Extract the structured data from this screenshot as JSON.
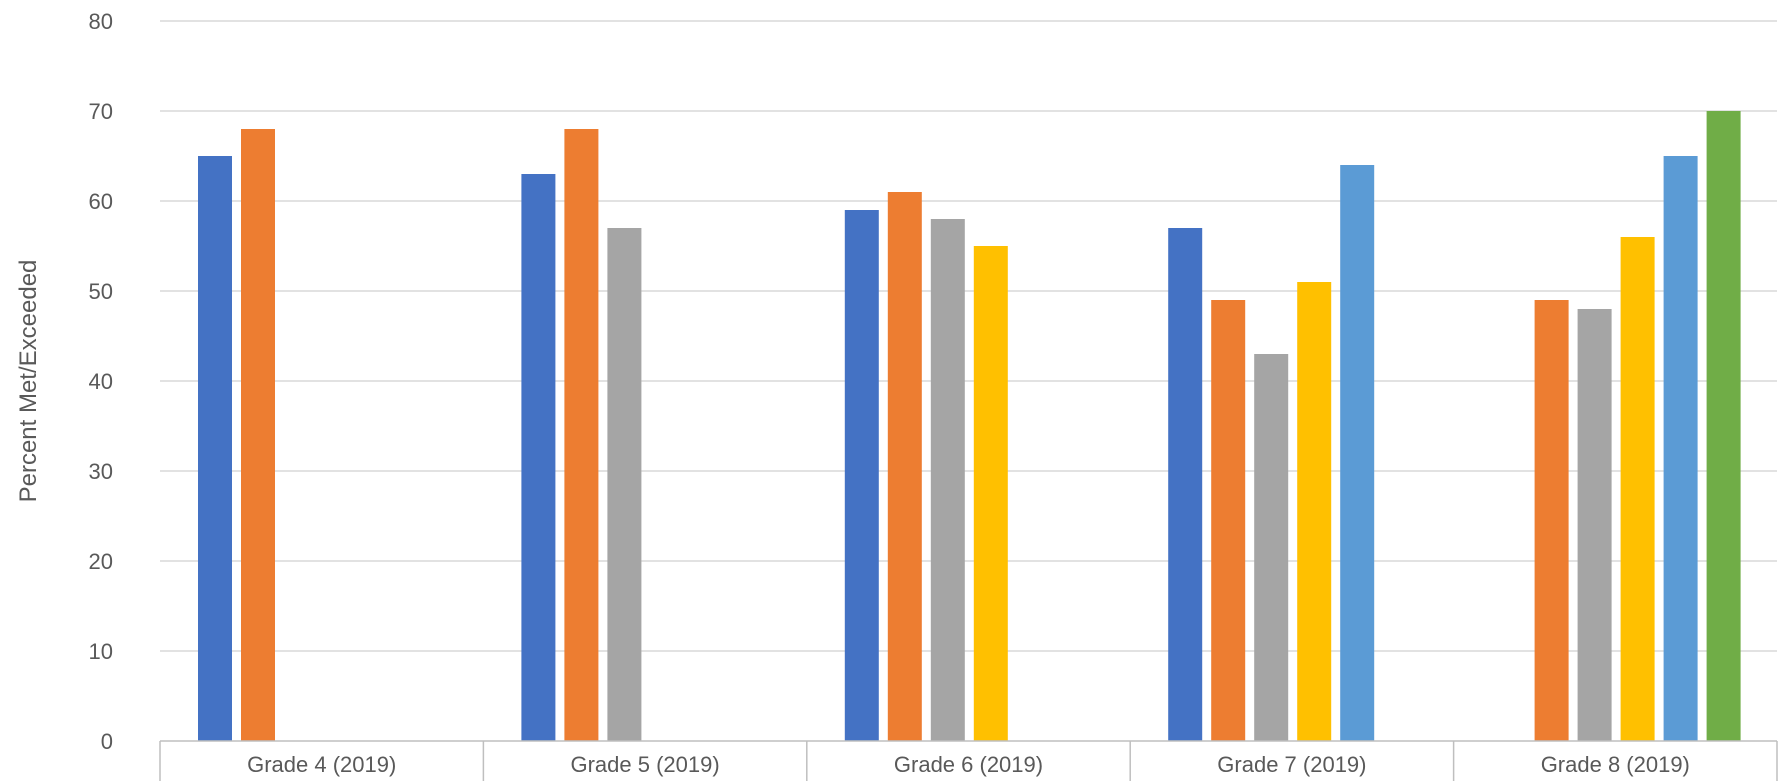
{
  "chart_data": {
    "type": "bar",
    "title": "",
    "xlabel": "",
    "ylabel": "Percent Met/Exceeded",
    "ylim": [
      0,
      80
    ],
    "yticks": [
      0,
      10,
      20,
      30,
      40,
      50,
      60,
      70,
      80
    ],
    "grid": true,
    "legend": "none",
    "categories": [
      "Grade 4 (2019)",
      "Grade 5 (2019)",
      "Grade 6 (2019)",
      "Grade 7 (2019)",
      "Grade 8 (2019)"
    ],
    "series": [
      {
        "color": "#4472C4",
        "values": [
          65,
          63,
          59,
          57,
          null
        ]
      },
      {
        "color": "#ED7D31",
        "values": [
          68,
          68,
          61,
          49,
          49
        ]
      },
      {
        "color": "#A5A5A5",
        "values": [
          null,
          57,
          58,
          43,
          48
        ]
      },
      {
        "color": "#FFC000",
        "values": [
          null,
          null,
          55,
          51,
          56
        ]
      },
      {
        "color": "#5B9BD5",
        "values": [
          null,
          null,
          null,
          64,
          65
        ]
      },
      {
        "color": "#70AD47",
        "values": [
          null,
          null,
          null,
          null,
          70
        ]
      }
    ]
  }
}
